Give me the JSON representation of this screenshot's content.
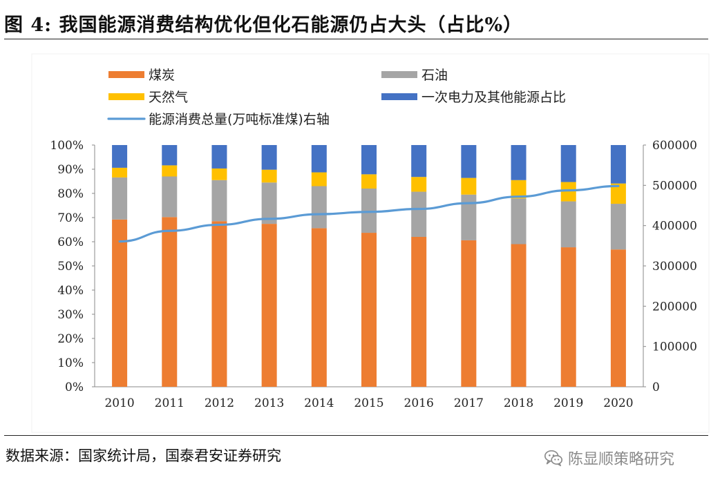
{
  "figure": {
    "title": "图 4:  我国能源消费结构优化但化石能源仍占大头（占比%）",
    "source": "数据来源：国家统计局，国泰君安证券研究",
    "watermark": "陈显顺策略研究",
    "watermark_icon": "wechat-icon"
  },
  "chart_data": {
    "type": "bar",
    "stacked": true,
    "title": "",
    "categories": [
      "2010",
      "2011",
      "2012",
      "2013",
      "2014",
      "2015",
      "2016",
      "2017",
      "2018",
      "2019",
      "2020"
    ],
    "series": [
      {
        "name": "煤炭",
        "color": "#ED7D31",
        "values": [
          69.2,
          70.2,
          68.5,
          67.4,
          65.6,
          63.7,
          62.0,
          60.6,
          59.0,
          57.7,
          56.8
        ]
      },
      {
        "name": "石油",
        "color": "#A5A5A5",
        "values": [
          17.4,
          16.8,
          17.0,
          17.1,
          17.4,
          18.3,
          18.7,
          18.9,
          18.9,
          19.0,
          18.9
        ]
      },
      {
        "name": "天然气",
        "color": "#FFC000",
        "values": [
          4.0,
          4.6,
          4.8,
          5.3,
          5.7,
          5.9,
          6.1,
          6.9,
          7.6,
          8.0,
          8.4
        ]
      },
      {
        "name": "一次电力及其他能源占比",
        "color": "#4472C4",
        "values": [
          9.4,
          8.4,
          9.7,
          10.2,
          11.3,
          12.1,
          13.2,
          13.6,
          14.5,
          15.3,
          15.9
        ]
      }
    ],
    "line_series": {
      "name": "能源消费总量(万吨标准煤)右轴",
      "color": "#5B9BD5",
      "axis": "right",
      "values": [
        360648,
        387043,
        402138,
        416913,
        428334,
        434113,
        441492,
        455827,
        471925,
        487488,
        498314
      ]
    },
    "y_left": {
      "min": 0,
      "max": 100,
      "step": 10,
      "tick_labels": [
        "0%",
        "10%",
        "20%",
        "30%",
        "40%",
        "50%",
        "60%",
        "70%",
        "80%",
        "90%",
        "100%"
      ]
    },
    "y_right": {
      "min": 0,
      "max": 600000,
      "step": 100000,
      "tick_labels": [
        "0",
        "100000",
        "200000",
        "300000",
        "400000",
        "500000",
        "600000"
      ]
    },
    "xlabel": "",
    "ylabel": "",
    "legend_position": "top",
    "legend": [
      {
        "label": "煤炭",
        "kind": "box",
        "color": "#ED7D31"
      },
      {
        "label": "石油",
        "kind": "box",
        "color": "#A5A5A5"
      },
      {
        "label": "天然气",
        "kind": "box",
        "color": "#FFC000"
      },
      {
        "label": "一次电力及其他能源占比",
        "kind": "box",
        "color": "#4472C4"
      },
      {
        "label": "能源消费总量(万吨标准煤)右轴",
        "kind": "line",
        "color": "#5B9BD5"
      }
    ]
  }
}
